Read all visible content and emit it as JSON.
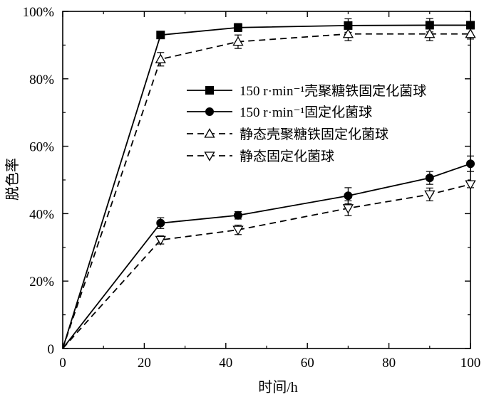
{
  "chart_data": {
    "type": "line",
    "xlabel": "时间/h",
    "ylabel": "脱色率",
    "xlim": [
      0,
      100
    ],
    "ylim": [
      0,
      100
    ],
    "x_ticks": [
      0,
      20,
      40,
      60,
      80,
      100
    ],
    "x_tick_labels": [
      "0",
      "20",
      "40",
      "60",
      "80",
      "100"
    ],
    "y_ticks": [
      0,
      20,
      40,
      60,
      80,
      100
    ],
    "y_tick_labels": [
      "0",
      "20%",
      "40%",
      "60%",
      "80%",
      "100%"
    ],
    "grid": false,
    "legend_position": "center-right",
    "series": [
      {
        "name": "150 r·min⁻¹壳聚糖铁固定化菌球",
        "line_style": "solid",
        "marker": "filled-square",
        "color": "#000000",
        "x": [
          0,
          24,
          43,
          70,
          90,
          100
        ],
        "y": [
          0,
          93.0,
          95.2,
          95.8,
          95.9,
          95.9
        ],
        "error": [
          0,
          0.8,
          1.2,
          2.0,
          2.0,
          1.0
        ]
      },
      {
        "name": "150 r·min⁻¹固定化菌球",
        "line_style": "solid",
        "marker": "filled-circle",
        "color": "#000000",
        "x": [
          0,
          24,
          43,
          70,
          90,
          100
        ],
        "y": [
          0,
          37.2,
          39.5,
          45.3,
          50.6,
          54.8
        ],
        "error": [
          0,
          1.6,
          1.1,
          2.4,
          1.9,
          2.3
        ]
      },
      {
        "name": "静态壳聚糖铁固定化菌球",
        "line_style": "dashed",
        "marker": "open-triangle-up",
        "color": "#000000",
        "x": [
          0,
          24,
          43,
          70,
          90,
          100
        ],
        "y": [
          0,
          85.8,
          91.0,
          93.3,
          93.3,
          93.3
        ],
        "error": [
          0,
          2.0,
          2.0,
          2.0,
          2.0,
          1.5
        ]
      },
      {
        "name": "静态固定化菌球",
        "line_style": "dashed",
        "marker": "open-triangle-down",
        "color": "#000000",
        "x": [
          0,
          24,
          43,
          70,
          90,
          100
        ],
        "y": [
          0,
          32.2,
          35.2,
          41.6,
          45.7,
          48.7
        ],
        "error": [
          0,
          1.2,
          1.4,
          2.2,
          1.9,
          1.0
        ]
      }
    ]
  }
}
